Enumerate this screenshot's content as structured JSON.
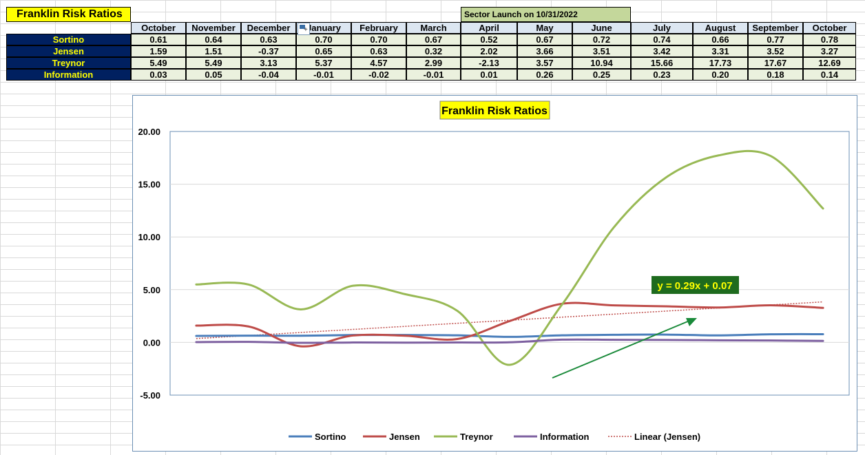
{
  "sheet": {
    "title": "Franklin Risk Ratios",
    "sector_note": "Sector Launch on 10/31/2022",
    "months": [
      "October",
      "November",
      "December",
      "January",
      "February",
      "March",
      "April",
      "May",
      "June",
      "July",
      "August",
      "September",
      "October"
    ],
    "rows": [
      {
        "label": "Sortino",
        "values": [
          "0.61",
          "0.64",
          "0.63",
          "0.70",
          "0.70",
          "0.67",
          "0.52",
          "0.67",
          "0.72",
          "0.74",
          "0.66",
          "0.77",
          "0.78"
        ]
      },
      {
        "label": "Jensen",
        "values": [
          "1.59",
          "1.51",
          "-0.37",
          "0.65",
          "0.63",
          "0.32",
          "2.02",
          "3.66",
          "3.51",
          "3.42",
          "3.31",
          "3.52",
          "3.27"
        ]
      },
      {
        "label": "Treynor",
        "values": [
          "5.49",
          "5.49",
          "3.13",
          "5.37",
          "4.57",
          "2.99",
          "-2.13",
          "3.57",
          "10.94",
          "15.66",
          "17.73",
          "17.67",
          "12.69"
        ]
      },
      {
        "label": "Information",
        "values": [
          "0.03",
          "0.05",
          "-0.04",
          "-0.01",
          "-0.02",
          "-0.01",
          "0.01",
          "0.26",
          "0.25",
          "0.23",
          "0.20",
          "0.18",
          "0.14"
        ]
      }
    ]
  },
  "chart_data": {
    "type": "line",
    "title": "Franklin Risk Ratios",
    "x": [
      1,
      2,
      3,
      4,
      5,
      6,
      7,
      8,
      9,
      10,
      11,
      12,
      13
    ],
    "ylim": [
      -5,
      20
    ],
    "yticks": [
      "20.00",
      "15.00",
      "10.00",
      "5.00",
      "0.00",
      "-5.00"
    ],
    "grid": true,
    "legend_position": "bottom",
    "series": [
      {
        "name": "Sortino",
        "color": "#4a7ebb",
        "values": [
          0.61,
          0.64,
          0.63,
          0.7,
          0.7,
          0.67,
          0.52,
          0.67,
          0.72,
          0.74,
          0.66,
          0.77,
          0.78
        ]
      },
      {
        "name": "Jensen",
        "color": "#be4b48",
        "values": [
          1.59,
          1.51,
          -0.37,
          0.65,
          0.63,
          0.32,
          2.02,
          3.66,
          3.51,
          3.42,
          3.31,
          3.52,
          3.27
        ]
      },
      {
        "name": "Treynor",
        "color": "#98b954",
        "values": [
          5.49,
          5.49,
          3.13,
          5.37,
          4.57,
          2.99,
          -2.13,
          3.57,
          10.94,
          15.66,
          17.73,
          17.67,
          12.69
        ]
      },
      {
        "name": "Information",
        "color": "#7d60a0",
        "values": [
          0.03,
          0.05,
          -0.04,
          -0.01,
          -0.02,
          -0.01,
          0.01,
          0.26,
          0.25,
          0.23,
          0.2,
          0.18,
          0.14
        ]
      }
    ],
    "trendline": {
      "name": "Linear (Jensen)",
      "color": "#be4b48",
      "slope": 0.29,
      "intercept": 0.07,
      "equation": "y = 0.29x + 0.07"
    },
    "annotation_arrow_color": "#1a8a3a",
    "equation_box_color": "#1e6b1e",
    "equation_text_color": "#ffff00",
    "title_box_color": "#ffff00"
  }
}
